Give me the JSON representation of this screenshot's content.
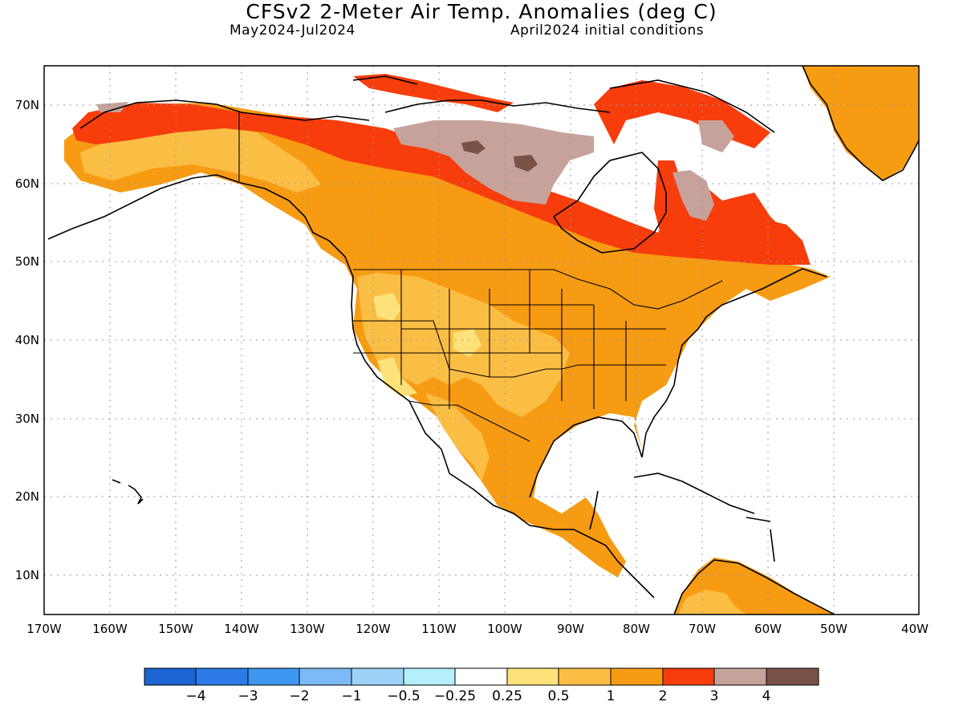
{
  "title": "CFSv2 2-Meter Air Temp. Anomalies (deg C)",
  "subtitle_left": "May2024-Jul2024",
  "subtitle_right": "April2024 initial conditions",
  "lat_labels": [
    "10N",
    "20N",
    "30N",
    "40N",
    "50N",
    "60N",
    "70N"
  ],
  "lon_labels": [
    "170W",
    "160W",
    "150W",
    "140W",
    "130W",
    "120W",
    "110W",
    "100W",
    "90W",
    "80W",
    "70W",
    "60W",
    "50W",
    "40W"
  ],
  "colorbar": {
    "colors": [
      "#1a64d4",
      "#2b7ae8",
      "#3d96ef",
      "#7bbaf5",
      "#9ed2f8",
      "#b4effb",
      "#ffffff",
      "#fde27a",
      "#fbbe45",
      "#f79b13",
      "#f73d0c",
      "#c7a29a",
      "#7a5147"
    ],
    "labels": [
      "−4",
      "−3",
      "−2",
      "−1",
      "−0.5",
      "−0.25",
      "0.25",
      "0.5",
      "1",
      "2",
      "3",
      "4"
    ]
  },
  "colors": {
    "light_yellow": "#fde27a",
    "light_orange": "#fbbe45",
    "orange": "#f79b13",
    "red": "#f73d0c",
    "rose": "#c7a29a",
    "brown": "#7a5147"
  }
}
